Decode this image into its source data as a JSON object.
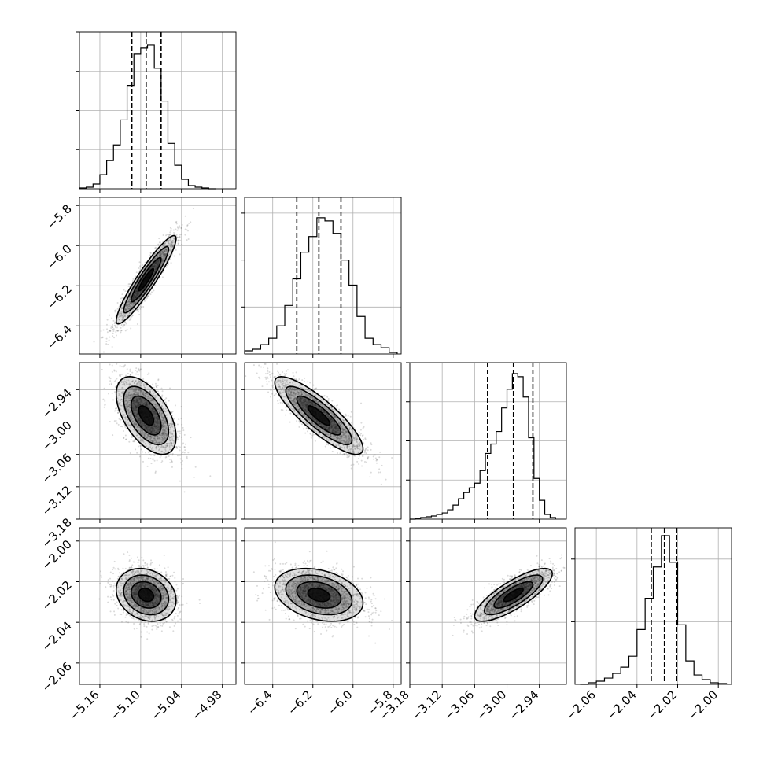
{
  "colors": {
    "line": "#000000",
    "grid": "#b0b0b0",
    "scatter": "#555555",
    "background": "#ffffff"
  },
  "chart_data": {
    "type": "corner",
    "title": "",
    "grid": true,
    "parameters": [
      {
        "range": [
          -5.19,
          -4.96
        ],
        "ticks": [
          -5.16,
          -5.1,
          -5.04,
          -4.98
        ],
        "tick_labels": [
          "−5.16",
          "−5.10",
          "−5.04",
          "−4.98"
        ]
      },
      {
        "range": [
          -6.54,
          -5.76
        ],
        "ticks": [
          -6.4,
          -6.2,
          -6.0,
          -5.8
        ],
        "tick_labels": [
          "−6.4",
          "−6.2",
          "−6.0",
          "−5.8"
        ]
      },
      {
        "range": [
          -3.18,
          -2.89
        ],
        "ticks": [
          -3.18,
          -3.12,
          -3.06,
          -3.0,
          -2.94
        ],
        "tick_labels": [
          "−3.18",
          "−3.12",
          "−3.06",
          "−3.00",
          "−2.94"
        ]
      },
      {
        "range": [
          -2.0705,
          -1.9935
        ],
        "ticks": [
          -2.06,
          -2.04,
          -2.02,
          -2.0
        ],
        "tick_labels": [
          "−2.06",
          "−2.04",
          "−2.02",
          "−2.00"
        ]
      }
    ],
    "histograms": [
      {
        "param": 0,
        "quantiles": [
          -5.113,
          -5.092,
          -5.07
        ],
        "max_count": 1,
        "hist_ticks": [
          0.25,
          0.5,
          0.75,
          1.0
        ],
        "bin_edges": [
          -5.19,
          -5.18,
          -5.17,
          -5.16,
          -5.15,
          -5.14,
          -5.13,
          -5.12,
          -5.11,
          -5.1,
          -5.09,
          -5.08,
          -5.07,
          -5.06,
          -5.05,
          -5.04,
          -5.03,
          -5.02,
          -5.01,
          -5.0,
          -4.99
        ],
        "counts": [
          0.005,
          0.01,
          0.03,
          0.09,
          0.18,
          0.28,
          0.44,
          0.66,
          0.86,
          0.9,
          0.92,
          0.77,
          0.56,
          0.29,
          0.15,
          0.06,
          0.02,
          0.01,
          0.005,
          0.0
        ]
      },
      {
        "param": 1,
        "quantiles": [
          -6.28,
          -6.17,
          -6.06
        ],
        "max_count": 1,
        "hist_ticks": [
          0.3,
          0.6,
          0.9
        ],
        "bin_edges": [
          -6.54,
          -6.5,
          -6.46,
          -6.42,
          -6.38,
          -6.34,
          -6.3,
          -6.26,
          -6.22,
          -6.18,
          -6.14,
          -6.1,
          -6.06,
          -6.02,
          -5.98,
          -5.94,
          -5.9,
          -5.86,
          -5.82,
          -5.78
        ],
        "counts": [
          0.02,
          0.03,
          0.06,
          0.1,
          0.18,
          0.31,
          0.48,
          0.65,
          0.75,
          0.87,
          0.85,
          0.77,
          0.6,
          0.44,
          0.24,
          0.1,
          0.06,
          0.04,
          0.01
        ]
      },
      {
        "param": 2,
        "quantiles": [
          -3.036,
          -2.988,
          -2.952
        ],
        "max_count": 1,
        "hist_ticks": [
          0.25,
          0.5,
          0.75,
          1.0
        ],
        "bin_edges": [
          -3.18,
          -3.17,
          -3.16,
          -3.15,
          -3.14,
          -3.13,
          -3.12,
          -3.11,
          -3.1,
          -3.09,
          -3.08,
          -3.07,
          -3.06,
          -3.05,
          -3.04,
          -3.03,
          -3.02,
          -3.01,
          -3.0,
          -2.99,
          -2.98,
          -2.97,
          -2.96,
          -2.95,
          -2.94,
          -2.93,
          -2.92,
          -2.91
        ],
        "counts": [
          0.0,
          0.005,
          0.01,
          0.015,
          0.02,
          0.03,
          0.04,
          0.06,
          0.09,
          0.13,
          0.17,
          0.2,
          0.23,
          0.31,
          0.42,
          0.48,
          0.56,
          0.71,
          0.83,
          0.93,
          0.91,
          0.78,
          0.52,
          0.26,
          0.12,
          0.03,
          0.01
        ]
      },
      {
        "param": 3,
        "quantiles": [
          -2.033,
          -2.0265,
          -2.0205
        ],
        "max_count": 1,
        "hist_ticks": [
          0.4,
          0.8
        ],
        "bin_edges": [
          -2.068,
          -2.064,
          -2.06,
          -2.056,
          -2.052,
          -2.048,
          -2.044,
          -2.04,
          -2.036,
          -2.032,
          -2.028,
          -2.024,
          -2.02,
          -2.016,
          -2.012,
          -2.008,
          -2.004,
          -2.0,
          -1.996
        ],
        "counts": [
          0.0,
          0.01,
          0.02,
          0.04,
          0.07,
          0.11,
          0.18,
          0.35,
          0.55,
          0.75,
          0.95,
          0.78,
          0.38,
          0.15,
          0.06,
          0.03,
          0.01,
          0.005
        ]
      }
    ],
    "pairs": [
      {
        "x": 0,
        "y": 1,
        "mean": [
          -5.092,
          -6.17
        ],
        "sd": [
          0.022,
          0.11
        ],
        "corr": 0.93
      },
      {
        "x": 0,
        "y": 2,
        "mean": [
          -5.092,
          -2.988
        ],
        "sd": [
          0.022,
          0.036
        ],
        "corr": -0.55
      },
      {
        "x": 0,
        "y": 3,
        "mean": [
          -5.092,
          -2.0265
        ],
        "sd": [
          0.022,
          0.0065
        ],
        "corr": -0.2
      },
      {
        "x": 1,
        "y": 2,
        "mean": [
          -6.17,
          -2.988
        ],
        "sd": [
          0.11,
          0.036
        ],
        "corr": -0.85
      },
      {
        "x": 1,
        "y": 3,
        "mean": [
          -6.17,
          -2.0265
        ],
        "sd": [
          0.11,
          0.0065
        ],
        "corr": -0.3
      },
      {
        "x": 2,
        "y": 3,
        "mean": [
          -2.988,
          -2.0265
        ],
        "sd": [
          0.036,
          0.0065
        ],
        "corr": 0.8
      }
    ]
  }
}
